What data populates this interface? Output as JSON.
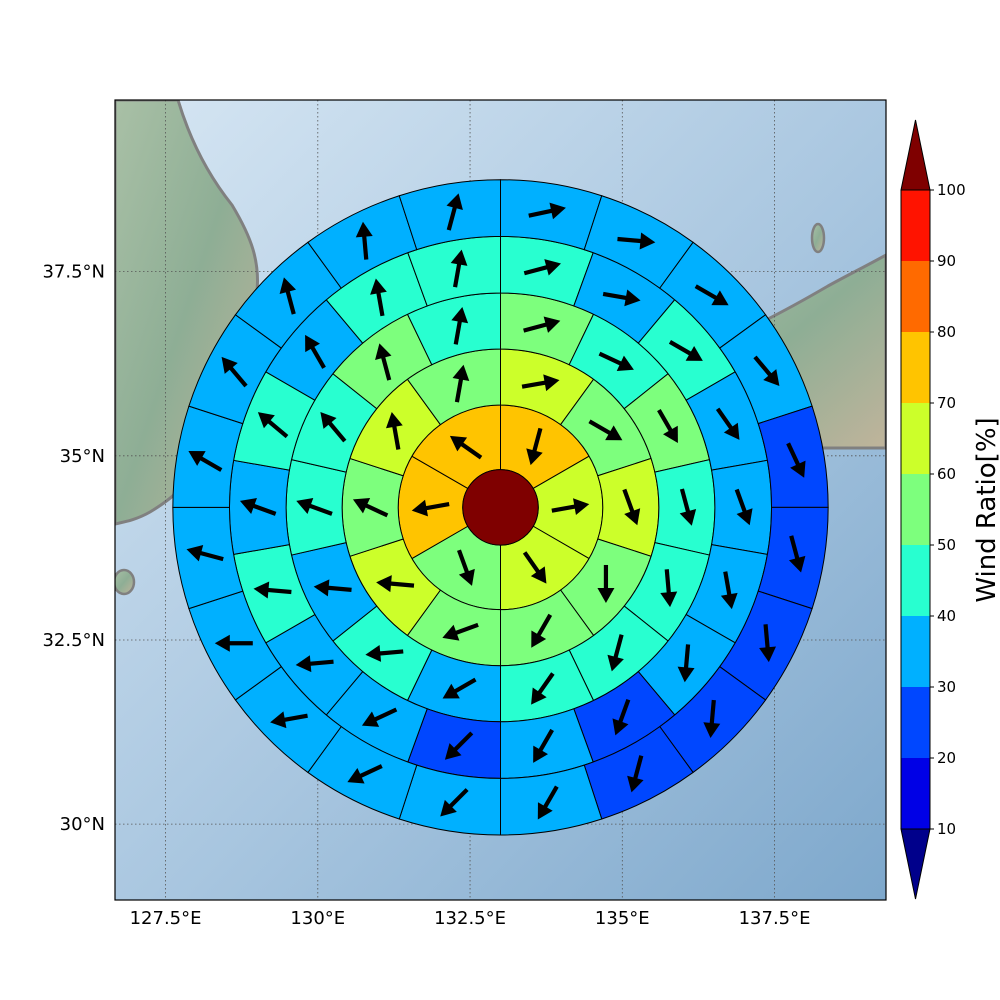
{
  "chart_data": {
    "type": "polar-sector-map",
    "projection": "plate-carree",
    "extent": {
      "lon": [
        126.67,
        139.33
      ],
      "lat": [
        28.97,
        39.83
      ]
    },
    "xticks": [
      {
        "value": 127.5,
        "label": "127.5°E"
      },
      {
        "value": 130.0,
        "label": "130°E"
      },
      {
        "value": 132.5,
        "label": "132.5°E"
      },
      {
        "value": 135.0,
        "label": "135°E"
      },
      {
        "value": 137.5,
        "label": "137.5°E"
      }
    ],
    "yticks": [
      {
        "value": 30.0,
        "label": "30°N"
      },
      {
        "value": 32.5,
        "label": "32.5°N"
      },
      {
        "value": 35.0,
        "label": "35°N"
      },
      {
        "value": 37.5,
        "label": "37.5°N"
      }
    ],
    "grid": true,
    "center": {
      "lon": 133.0,
      "lat": 34.3,
      "value": 100
    },
    "ring_radii_deg": [
      0.62,
      1.68,
      2.6,
      3.52,
      4.45,
      5.38
    ],
    "ring_sectors": [
      {
        "ring": 1,
        "sectors": 6,
        "values": [
          75,
          65,
          65,
          55,
          75,
          75
        ],
        "arrow_dirs": [
          195,
          80,
          145,
          160,
          260,
          305
        ]
      },
      {
        "ring": 2,
        "sectors": 10,
        "values": [
          65,
          55,
          65,
          55,
          55,
          55,
          65,
          55,
          65,
          55
        ],
        "arrow_dirs": [
          80,
          120,
          160,
          180,
          210,
          250,
          275,
          295,
          350,
          10
        ]
      },
      {
        "ring": 3,
        "sectors": 14,
        "values": [
          55,
          45,
          55,
          45,
          45,
          45,
          45,
          35,
          45,
          35,
          45,
          45,
          55,
          45
        ],
        "arrow_dirs": [
          75,
          115,
          150,
          165,
          175,
          195,
          215,
          240,
          265,
          275,
          290,
          320,
          345,
          10
        ]
      },
      {
        "ring": 4,
        "sectors": 18,
        "values": [
          45,
          35,
          45,
          35,
          35,
          35,
          35,
          25,
          35,
          25,
          35,
          35,
          45,
          35,
          45,
          35,
          45,
          45
        ],
        "arrow_dirs": [
          75,
          100,
          120,
          145,
          160,
          170,
          185,
          200,
          210,
          225,
          245,
          265,
          275,
          290,
          310,
          330,
          350,
          10
        ]
      },
      {
        "ring": 5,
        "sectors": 20,
        "values": [
          35,
          35,
          35,
          35,
          25,
          25,
          25,
          25,
          25,
          35,
          35,
          35,
          35,
          35,
          35,
          35,
          35,
          35,
          35,
          35
        ],
        "arrow_dirs": [
          78,
          95,
          120,
          140,
          155,
          165,
          175,
          185,
          195,
          210,
          225,
          245,
          260,
          270,
          285,
          300,
          320,
          345,
          355,
          15
        ]
      },
      {
        "ring": 6,
        "sectors": 22,
        "values": [
          35,
          35,
          35,
          35,
          25,
          25,
          25,
          25,
          25,
          25,
          25,
          35,
          35,
          35,
          35,
          35,
          35,
          35,
          35,
          45,
          45,
          35
        ],
        "arrow_dirs": [
          78,
          100,
          115,
          140,
          155,
          165,
          175,
          185,
          195,
          210,
          225,
          240,
          260,
          270,
          285,
          295,
          315,
          330,
          345,
          355,
          20,
          60
        ]
      }
    ],
    "colorbar": {
      "label": "Wind Ratio[%]",
      "ticks": [
        10,
        20,
        30,
        40,
        50,
        60,
        70,
        80,
        90,
        100
      ],
      "bins": [
        {
          "range": [
            0,
            10
          ],
          "color": "#00008b"
        },
        {
          "range": [
            10,
            20
          ],
          "color": "#0000e6"
        },
        {
          "range": [
            20,
            30
          ],
          "color": "#0047ff"
        },
        {
          "range": [
            30,
            40
          ],
          "color": "#00b0ff"
        },
        {
          "range": [
            40,
            50
          ],
          "color": "#28ffd0"
        },
        {
          "range": [
            50,
            60
          ],
          "color": "#7dff7d"
        },
        {
          "range": [
            60,
            70
          ],
          "color": "#ccff2a"
        },
        {
          "range": [
            70,
            80
          ],
          "color": "#ffc400"
        },
        {
          "range": [
            80,
            90
          ],
          "color": "#ff6a00"
        },
        {
          "range": [
            90,
            100
          ],
          "color": "#ff1300"
        },
        {
          "range": [
            100,
            110
          ],
          "color": "#7f0000"
        }
      ],
      "extend": "both"
    }
  }
}
